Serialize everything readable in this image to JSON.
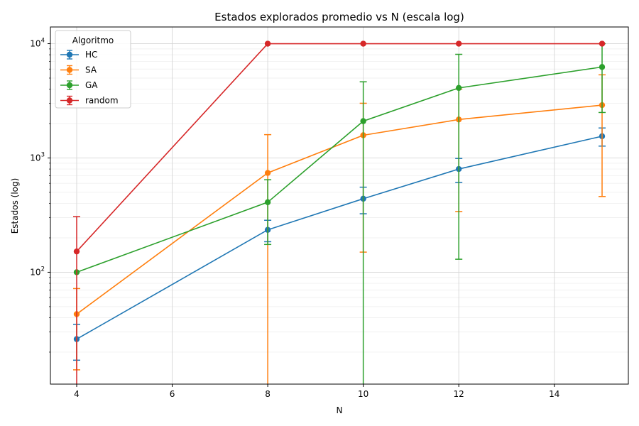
{
  "chart_data": {
    "type": "line",
    "title": "Estados explorados promedio vs N (escala log)",
    "xlabel": "N",
    "ylabel": "Estados (log)",
    "x_scale": "linear",
    "y_scale": "log",
    "xlim": [
      3.45,
      15.55
    ],
    "ylim": [
      10.5,
      14000
    ],
    "x_ticks": [
      4,
      6,
      8,
      10,
      12,
      14
    ],
    "y_ticks": [
      {
        "value": 100,
        "label": "10",
        "exp": "2"
      },
      {
        "value": 1000,
        "label": "10",
        "exp": "3"
      },
      {
        "value": 10000,
        "label": "10",
        "exp": "4"
      }
    ],
    "grid": true,
    "legend": {
      "title": "Algoritmo",
      "position": "top-left"
    },
    "series": [
      {
        "name": "HC",
        "color": "#1f77b4",
        "x": [
          4,
          8,
          10,
          12,
          15
        ],
        "y": [
          26,
          235,
          440,
          800,
          1550
        ],
        "y_err": [
          9,
          50,
          115,
          190,
          280
        ]
      },
      {
        "name": "SA",
        "color": "#ff7f0e",
        "x": [
          4,
          8,
          10,
          12,
          15
        ],
        "y": [
          43,
          740,
          1580,
          2170,
          2900
        ],
        "y_err": [
          29,
          860,
          1430,
          1830,
          2440
        ]
      },
      {
        "name": "GA",
        "color": "#2ca02c",
        "x": [
          4,
          8,
          10,
          12,
          15
        ],
        "y": [
          100,
          410,
          2100,
          4100,
          6250
        ],
        "y_err": [
          0,
          235,
          2540,
          3970,
          3750
        ]
      },
      {
        "name": "random",
        "color": "#d62728",
        "x": [
          4,
          8,
          10,
          12,
          15
        ],
        "y": [
          152,
          10000,
          10000,
          10000,
          10000
        ],
        "y_err": [
          155,
          0,
          0,
          0,
          0
        ]
      }
    ]
  }
}
